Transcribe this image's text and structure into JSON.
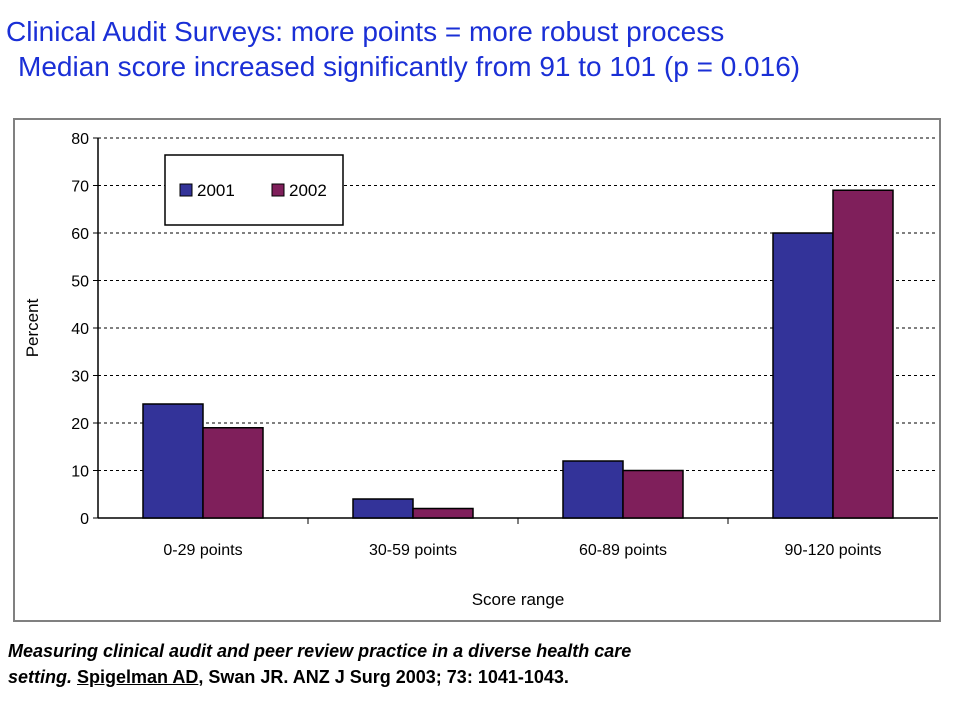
{
  "slide": {
    "title": "Clinical Audit Surveys: more points = more robust process",
    "subtitle": "Median score increased significantly from 91 to 101 (p = 0.016)"
  },
  "caption": {
    "line1": "Measuring clinical audit and peer review practice in a diverse health care",
    "line2_prefix": "setting.",
    "author_link": "Spigelman AD",
    "line2_rest": ", Swan JR. ANZ J Surg 2003; 73: 1041-1043."
  },
  "colors": {
    "title": "#1a2fd6",
    "series_2001": "#333399",
    "series_2002": "#7f1f5b",
    "frame": "#808080"
  },
  "chart_data": {
    "type": "bar",
    "categories": [
      "0-29 points",
      "30-59 points",
      "60-89 points",
      "90-120 points"
    ],
    "series": [
      {
        "name": "2001",
        "values": [
          24,
          4,
          12,
          60
        ]
      },
      {
        "name": "2002",
        "values": [
          19,
          2,
          10,
          69
        ]
      }
    ],
    "xlabel": "Score range",
    "ylabel": "Percent",
    "ylim": [
      0,
      80
    ],
    "yticks": [
      0,
      10,
      20,
      30,
      40,
      50,
      60,
      70,
      80
    ],
    "grid": true,
    "legend": "top-left"
  }
}
